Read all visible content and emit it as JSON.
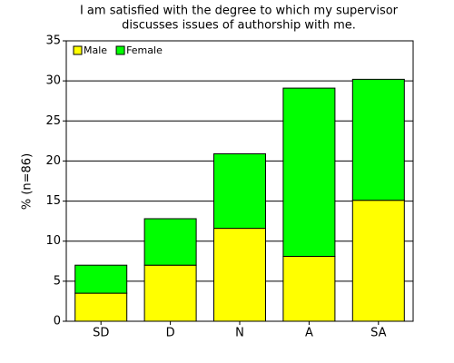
{
  "chart_data": {
    "type": "stacked-bar",
    "title": [
      "I am satisfied with the degree to which my supervisor",
      "discusses issues of authorship with me."
    ],
    "y_label": "% (n=86)",
    "categories": [
      "SD",
      "D",
      "N",
      "A",
      "SA"
    ],
    "series": [
      {
        "name": "Male",
        "color": "#ffff00",
        "values": [
          3.5,
          7,
          11.6,
          8.1,
          15.1
        ]
      },
      {
        "name": "Female",
        "color": "#00ff00",
        "values": [
          3.5,
          5.8,
          9.3,
          21,
          15.1
        ]
      }
    ],
    "ylim": [
      0,
      35
    ],
    "yticks": [
      0,
      5,
      10,
      15,
      20,
      25,
      30,
      35
    ],
    "grid": true,
    "legend": "top-left"
  }
}
